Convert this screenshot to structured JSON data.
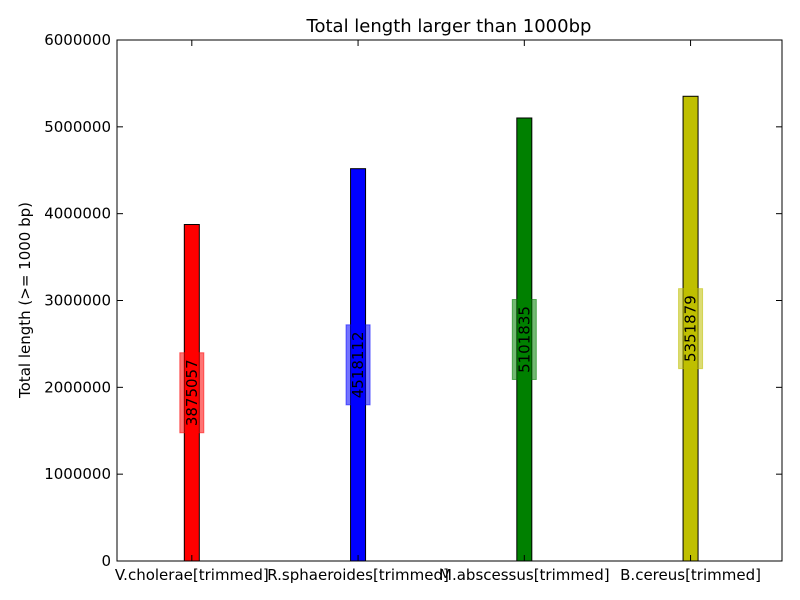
{
  "chart_data": {
    "type": "bar",
    "title": "Total length larger than 1000bp",
    "xlabel": "",
    "ylabel": "Total length (>= 1000 bp)",
    "ylim": [
      0,
      6000000
    ],
    "yticks": [
      "0",
      "1000000",
      "2000000",
      "3000000",
      "4000000",
      "5000000",
      "6000000"
    ],
    "categories": [
      "V.cholerae[trimmed]",
      "R.sphaeroides[trimmed]",
      "M.abscessus[trimmed]",
      "B.cereus[trimmed]"
    ],
    "values": [
      3875057,
      4518112,
      5101835,
      5351879
    ],
    "value_labels": [
      "3875057",
      "4518112",
      "5101835",
      "5351879"
    ],
    "colors": [
      "#ff0000",
      "#0000ff",
      "#008000",
      "#bfbf00"
    ],
    "grid": false,
    "legend": "none"
  }
}
